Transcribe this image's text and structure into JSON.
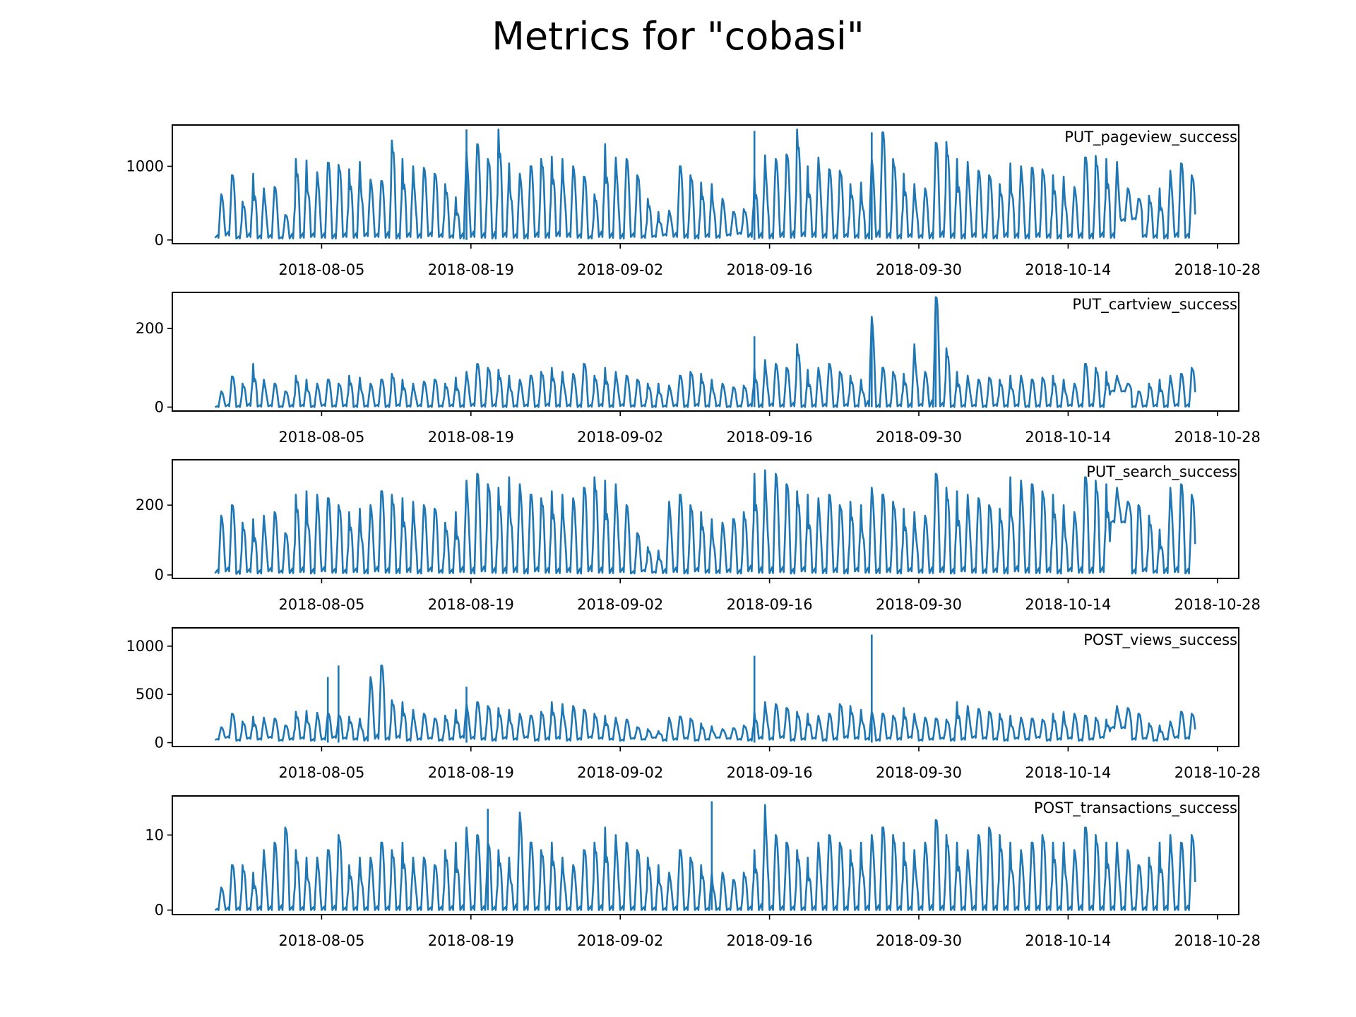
{
  "title": "Metrics for \"cobasi\"",
  "chart_data": {
    "type": "line",
    "title": "Metrics for \"cobasi\"",
    "series_color": "#1f77b4",
    "x_ticks": [
      "2018-08-05",
      "2018-08-19",
      "2018-09-02",
      "2018-09-16",
      "2018-09-30",
      "2018-10-14",
      "2018-10-28"
    ],
    "x_range": [
      "2018-07-22",
      "2018-10-30"
    ],
    "data_range": [
      "2018-07-26",
      "2018-10-26"
    ],
    "grid": false,
    "panels": [
      {
        "name": "PUT_pageview_success",
        "ylim": [
          -50,
          1560
        ],
        "yticks": [
          0,
          1000
        ],
        "daily_peaks": [
          620,
          880,
          520,
          900,
          700,
          720,
          340,
          1100,
          1080,
          920,
          1050,
          1020,
          960,
          1060,
          820,
          800,
          1350,
          1100,
          1000,
          980,
          900,
          760,
          580,
          1200,
          1300,
          1100,
          1500,
          1040,
          900,
          1000,
          1100,
          1130,
          1100,
          1000,
          860,
          620,
          1300,
          1120,
          1100,
          880,
          560,
          380,
          400,
          1000,
          880,
          780,
          760,
          560,
          380,
          420,
          880,
          1150,
          1100,
          1160,
          1500,
          1000,
          1120,
          960,
          940,
          760,
          780,
          1100,
          1460,
          1100,
          900,
          760,
          700,
          1320,
          1330,
          1100,
          1060,
          940,
          880,
          760,
          1040,
          1000,
          980,
          960,
          880,
          860,
          720,
          1120,
          1140,
          1100,
          1060,
          700,
          560,
          600,
          700,
          940,
          1040,
          880
        ],
        "daily_troughs": [
          30,
          60,
          20,
          40,
          20,
          30,
          20,
          20,
          30,
          40,
          30,
          20,
          40,
          30,
          50,
          40,
          30,
          20,
          40,
          30,
          50,
          40,
          30,
          20,
          40,
          30,
          20,
          40,
          30,
          20,
          40,
          30,
          50,
          40,
          30,
          20,
          40,
          30,
          20,
          40,
          30,
          40,
          60,
          40,
          30,
          20,
          40,
          30,
          60,
          80,
          40,
          30,
          20,
          40,
          30,
          50,
          40,
          30,
          20,
          40,
          30,
          20,
          40,
          30,
          20,
          40,
          30,
          20,
          40,
          30,
          20,
          40,
          30,
          20,
          40,
          30,
          20,
          40,
          30,
          20,
          40,
          30,
          20,
          40,
          30,
          260,
          280,
          40,
          30,
          20,
          40,
          30,
          20
        ],
        "spikes": [
          {
            "date": "2018-09-14",
            "value": 1480
          },
          {
            "date": "2018-08-18",
            "value": 1500
          },
          {
            "date": "2018-09-25",
            "value": 1460
          }
        ]
      },
      {
        "name": "PUT_cartview_success",
        "ylim": [
          -10,
          292
        ],
        "yticks": [
          0,
          200
        ],
        "daily_peaks": [
          40,
          78,
          60,
          110,
          70,
          60,
          40,
          80,
          70,
          60,
          70,
          60,
          80,
          75,
          60,
          70,
          85,
          70,
          60,
          65,
          70,
          60,
          75,
          90,
          110,
          100,
          95,
          80,
          70,
          80,
          90,
          100,
          90,
          85,
          110,
          80,
          100,
          90,
          80,
          70,
          60,
          60,
          55,
          80,
          90,
          85,
          70,
          60,
          50,
          55,
          100,
          120,
          110,
          100,
          160,
          95,
          100,
          110,
          90,
          80,
          70,
          230,
          100,
          90,
          85,
          160,
          90,
          280,
          150,
          90,
          80,
          70,
          75,
          70,
          80,
          80,
          70,
          75,
          80,
          70,
          60,
          110,
          100,
          90,
          80,
          60,
          40,
          60,
          70,
          80,
          85,
          100
        ],
        "daily_troughs": [
          0,
          2,
          0,
          3,
          1,
          2,
          0,
          1,
          2,
          0,
          3,
          1,
          2,
          0,
          1,
          2,
          0,
          3,
          1,
          2,
          0,
          1,
          2,
          0,
          3,
          1,
          2,
          0,
          1,
          2,
          0,
          3,
          1,
          2,
          0,
          1,
          2,
          0,
          3,
          1,
          2,
          0,
          1,
          2,
          0,
          3,
          1,
          2,
          0,
          1,
          2,
          0,
          3,
          1,
          2,
          0,
          1,
          2,
          0,
          3,
          1,
          2,
          0,
          1,
          2,
          0,
          3,
          1,
          2,
          0,
          1,
          2,
          0,
          3,
          1,
          2,
          0,
          1,
          2,
          0,
          3,
          1,
          2,
          0,
          40,
          40,
          0,
          1,
          2,
          0,
          3,
          1
        ],
        "spikes": [
          {
            "date": "2018-09-14",
            "value": 180
          },
          {
            "date": "2018-09-25",
            "value": 230
          },
          {
            "date": "2018-10-01",
            "value": 280
          }
        ]
      },
      {
        "name": "PUT_search_success",
        "ylim": [
          -10,
          330
        ],
        "yticks": [
          0,
          200
        ],
        "daily_peaks": [
          170,
          200,
          150,
          160,
          170,
          180,
          120,
          230,
          240,
          230,
          220,
          200,
          180,
          190,
          200,
          240,
          230,
          220,
          210,
          200,
          190,
          150,
          180,
          270,
          290,
          260,
          250,
          280,
          260,
          230,
          220,
          240,
          230,
          220,
          250,
          280,
          270,
          260,
          200,
          120,
          80,
          70,
          210,
          230,
          200,
          180,
          160,
          150,
          160,
          180,
          290,
          300,
          290,
          260,
          240,
          230,
          220,
          230,
          200,
          210,
          200,
          250,
          230,
          210,
          190,
          180,
          170,
          290,
          250,
          240,
          230,
          220,
          200,
          190,
          280,
          270,
          260,
          240,
          230,
          200,
          180,
          280,
          270,
          260,
          250,
          210,
          200,
          170,
          130,
          250,
          260,
          230
        ],
        "daily_troughs": [
          5,
          10,
          3,
          8,
          4,
          10,
          6,
          5,
          8,
          4,
          10,
          6,
          5,
          8,
          4,
          10,
          6,
          5,
          8,
          4,
          10,
          6,
          5,
          8,
          4,
          10,
          6,
          5,
          8,
          4,
          10,
          6,
          5,
          8,
          4,
          10,
          6,
          5,
          8,
          4,
          10,
          6,
          5,
          8,
          4,
          10,
          6,
          5,
          8,
          4,
          10,
          6,
          5,
          8,
          4,
          10,
          6,
          5,
          8,
          4,
          10,
          6,
          5,
          8,
          4,
          10,
          6,
          5,
          8,
          4,
          10,
          6,
          5,
          8,
          4,
          10,
          6,
          5,
          8,
          4,
          10,
          6,
          5,
          8,
          150,
          150,
          4,
          10,
          6,
          5,
          8,
          4
        ],
        "spikes": []
      },
      {
        "name": "POST_views_success",
        "ylim": [
          -40,
          1190
        ],
        "yticks": [
          0,
          500,
          1000
        ],
        "daily_peaks": [
          160,
          300,
          220,
          270,
          260,
          250,
          180,
          320,
          330,
          310,
          300,
          290,
          270,
          250,
          680,
          800,
          440,
          420,
          340,
          300,
          250,
          280,
          340,
          400,
          420,
          380,
          360,
          340,
          300,
          280,
          320,
          420,
          400,
          380,
          340,
          300,
          280,
          260,
          240,
          160,
          140,
          120,
          260,
          270,
          250,
          200,
          170,
          140,
          150,
          180,
          330,
          420,
          400,
          360,
          320,
          300,
          280,
          300,
          400,
          380,
          340,
          320,
          300,
          280,
          360,
          300,
          260,
          250,
          240,
          420,
          380,
          350,
          320,
          300,
          280,
          260,
          250,
          240,
          300,
          320,
          300,
          280,
          260,
          240,
          380,
          360,
          300,
          200,
          180,
          220,
          320,
          300
        ],
        "daily_troughs": [
          30,
          50,
          20,
          40,
          30,
          50,
          20,
          30,
          40,
          20,
          30,
          50,
          40,
          30,
          20,
          40,
          30,
          50,
          20,
          30,
          40,
          20,
          30,
          50,
          40,
          30,
          20,
          40,
          30,
          50,
          20,
          30,
          40,
          20,
          30,
          50,
          40,
          30,
          20,
          40,
          30,
          50,
          20,
          30,
          40,
          20,
          30,
          50,
          40,
          30,
          20,
          40,
          30,
          50,
          20,
          30,
          40,
          20,
          30,
          50,
          40,
          30,
          20,
          40,
          30,
          50,
          20,
          30,
          40,
          20,
          30,
          50,
          40,
          30,
          20,
          40,
          30,
          50,
          20,
          30,
          40,
          20,
          30,
          50,
          150,
          150,
          30,
          40,
          20,
          30,
          50,
          40
        ],
        "spikes": [
          {
            "date": "2018-08-06",
            "value": 800
          },
          {
            "date": "2018-08-05",
            "value": 680
          },
          {
            "date": "2018-09-14",
            "value": 900
          },
          {
            "date": "2018-09-25",
            "value": 1120
          },
          {
            "date": "2018-08-18",
            "value": 580
          }
        ]
      },
      {
        "name": "POST_transactions_success",
        "ylim": [
          -0.6,
          15.2
        ],
        "yticks": [
          0,
          10
        ],
        "daily_peaks": [
          3,
          6,
          6,
          5,
          8,
          9,
          11,
          8,
          7,
          7,
          8,
          10,
          6,
          7,
          7,
          9,
          8,
          9,
          7,
          7,
          6,
          8,
          9,
          11,
          10,
          9,
          8,
          7,
          13,
          9,
          8,
          9,
          7,
          6,
          8,
          9,
          11,
          10,
          9,
          8,
          7,
          6,
          5,
          8,
          7,
          6,
          5,
          5,
          4,
          5,
          8,
          14,
          10,
          9,
          8,
          7,
          9,
          10,
          9,
          8,
          9,
          10,
          11,
          10,
          9,
          8,
          9,
          12,
          10,
          9,
          8,
          10,
          11,
          10,
          9,
          8,
          9,
          10,
          9,
          9,
          8,
          11,
          10,
          9,
          9,
          8,
          6,
          7,
          9,
          10,
          9,
          10
        ],
        "daily_troughs": [
          0,
          0,
          0,
          0,
          0,
          0,
          0,
          0,
          0,
          0,
          0,
          0,
          0,
          0,
          0,
          0,
          0,
          0,
          0,
          0,
          0,
          0,
          0,
          0,
          0,
          0,
          0,
          0,
          0,
          0,
          0,
          0,
          0,
          0,
          0,
          0,
          0,
          0,
          0,
          0,
          0,
          0,
          0,
          0,
          0,
          0,
          0,
          0,
          0,
          0,
          0,
          0,
          0,
          0,
          0,
          0,
          0,
          0,
          0,
          0,
          0,
          0,
          0,
          0,
          0,
          0,
          0,
          0,
          0,
          0,
          0,
          0,
          0,
          0,
          0,
          0,
          0,
          0,
          0,
          0,
          0,
          0,
          0,
          0,
          0,
          0,
          0,
          0,
          0,
          0,
          0,
          0
        ],
        "spikes": [
          {
            "date": "2018-09-10",
            "value": 14.5
          },
          {
            "date": "2018-08-20",
            "value": 13.5
          }
        ]
      }
    ]
  }
}
